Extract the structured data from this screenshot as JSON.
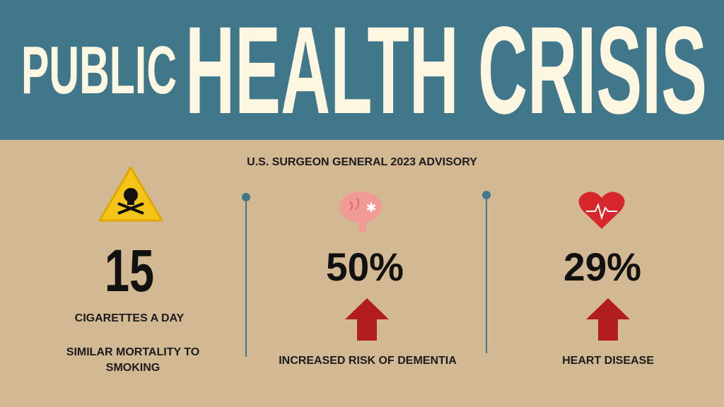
{
  "header": {
    "title_small": "PUBLIC",
    "title_large": "HEALTH CRISIS"
  },
  "subtitle": "U.S. SURGEON GENERAL 2023 ADVISORY",
  "stats": [
    {
      "value": "15",
      "label": "CIGARETTES A DAY",
      "note": "SIMILAR MORTALITY TO SMOKING"
    },
    {
      "value": "50%",
      "label": "INCREASED RISK OF DEMENTIA"
    },
    {
      "value": "29%",
      "label": "HEART DISEASE"
    }
  ]
}
